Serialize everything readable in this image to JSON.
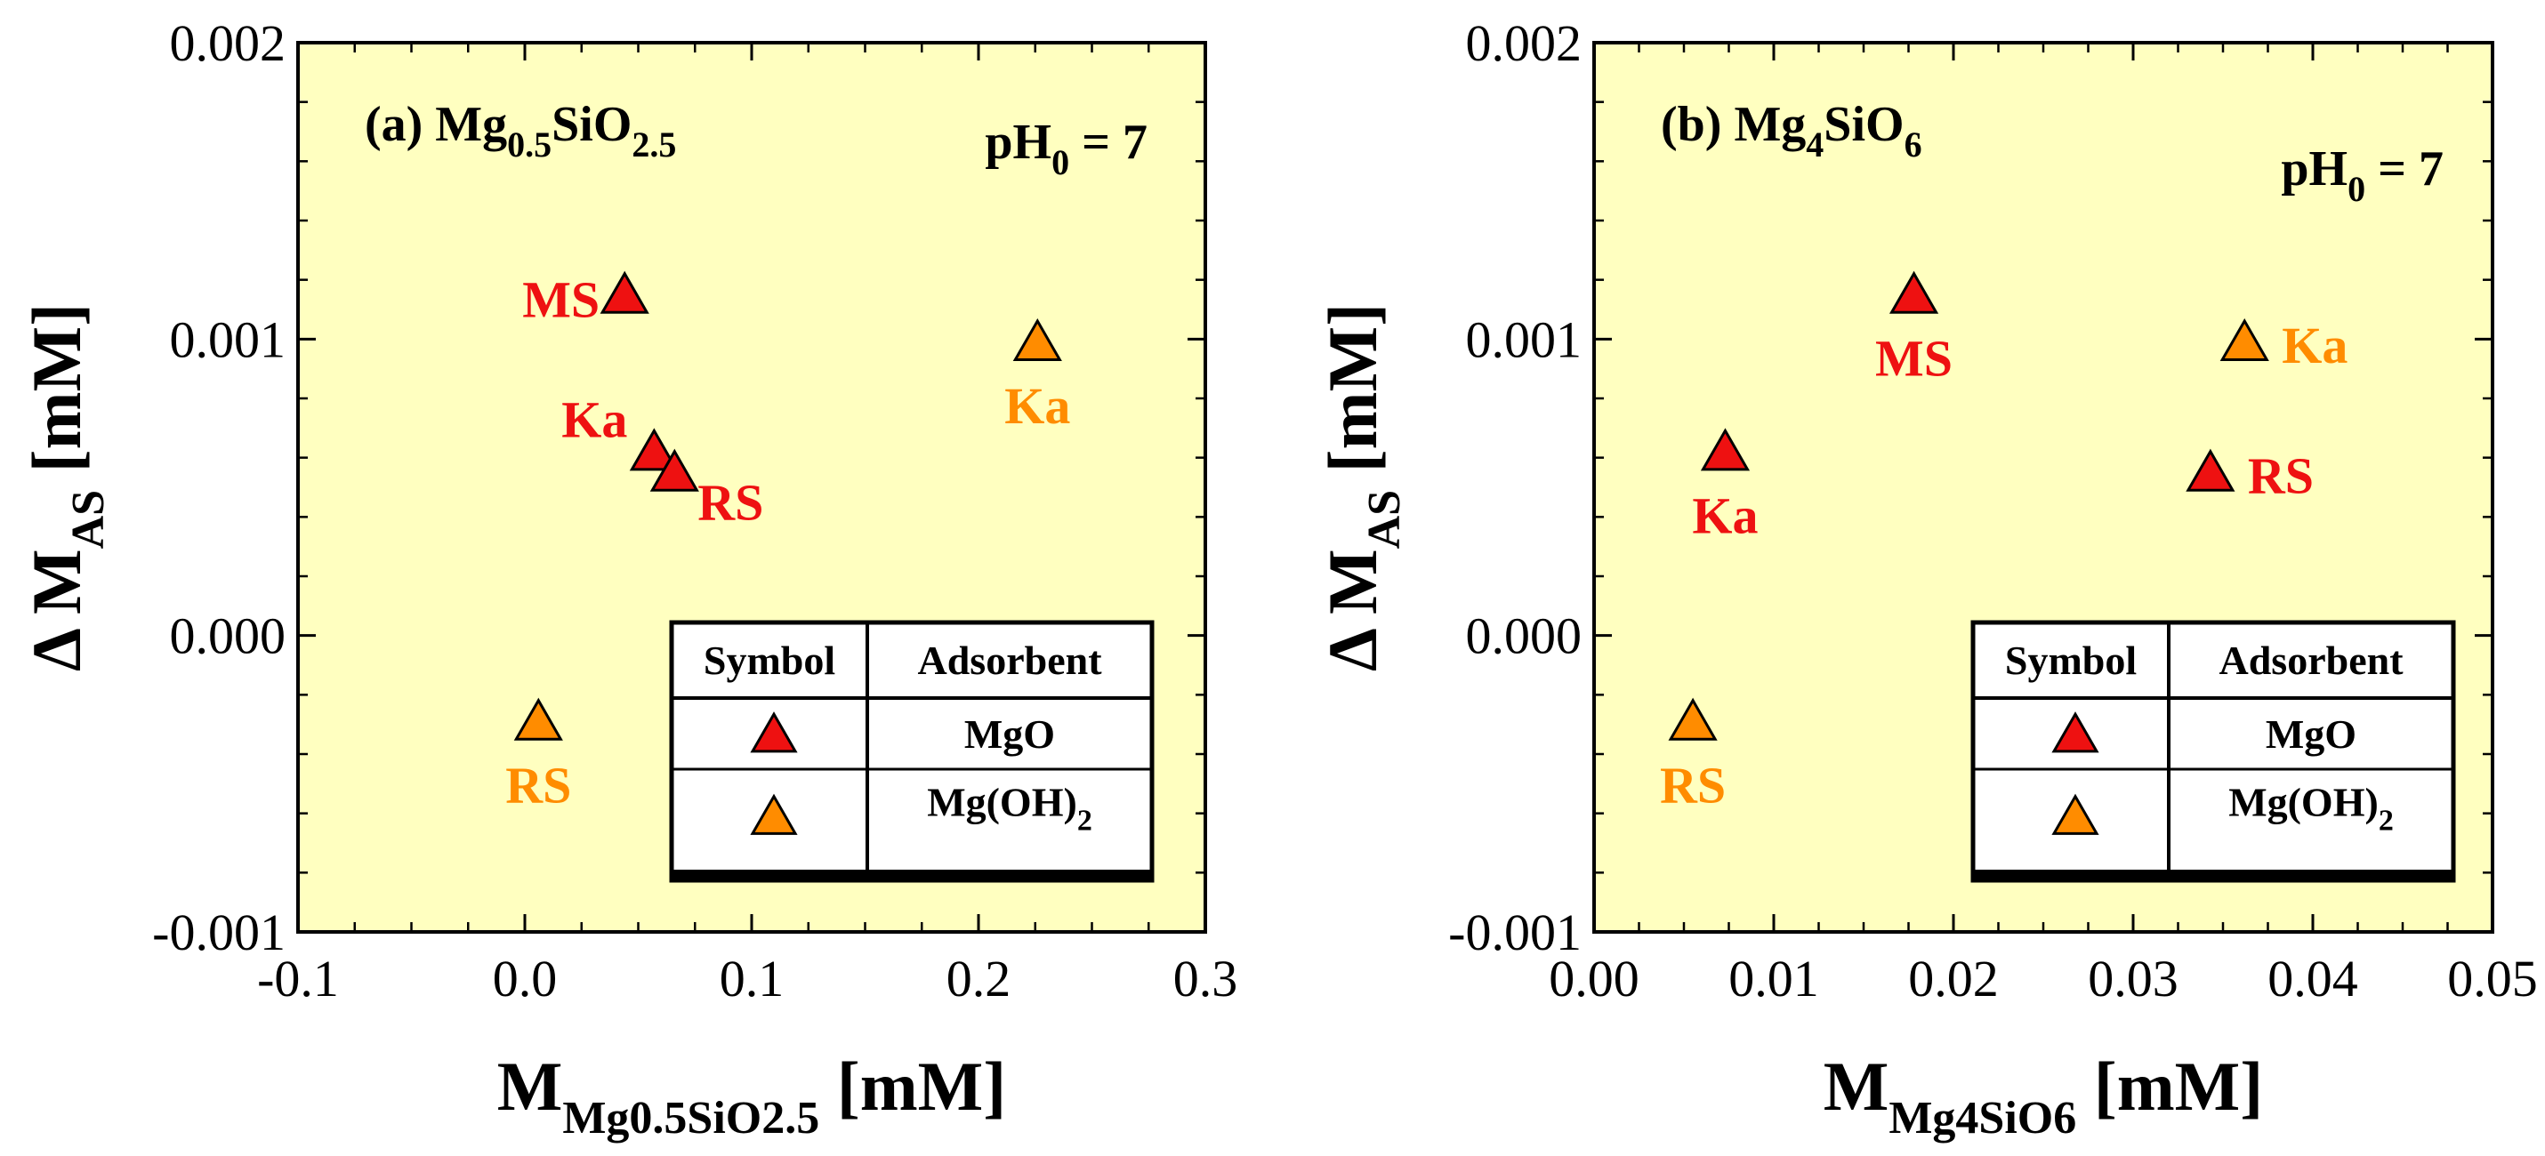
{
  "colors": {
    "plot_bg": "#ffffc0",
    "mgo": "#ee1111",
    "mgoh2": "#ff8c00",
    "mgo_label": "#ee1111",
    "mgoh2_label": "#ff8c00"
  },
  "chart_data": [
    {
      "type": "scatter",
      "panel": "a",
      "panel_label": {
        "prefix": "(a) Mg",
        "sub1": "0.5",
        "mid": "SiO",
        "sub2": "2.5"
      },
      "ph_label": {
        "prefix": "pH",
        "sub": "0",
        "suffix": " = 7"
      },
      "xlabel": {
        "main": "M",
        "sub": "Mg0.5SiO2.5",
        "unit": "[mM]"
      },
      "ylabel": {
        "main": "Δ M",
        "sub": "AS",
        "unit": "[mM]"
      },
      "xlim": [
        -0.1,
        0.3
      ],
      "ylim": [
        -0.001,
        0.002
      ],
      "xticks": [
        -0.1,
        0.0,
        0.1,
        0.2,
        0.3
      ],
      "xtick_labels": [
        "-0.1",
        "0.0",
        "0.1",
        "0.2",
        "0.3"
      ],
      "yticks": [
        -0.001,
        0.0,
        0.001,
        0.002
      ],
      "ytick_labels": [
        "-0.001",
        "0.000",
        "0.001",
        "0.002"
      ],
      "series": [
        {
          "name": "MgO",
          "color_key": "mgo",
          "points": [
            {
              "label": "MS",
              "x": 0.044,
              "y": 0.00114,
              "label_pos": "left"
            },
            {
              "label": "Ka",
              "x": 0.057,
              "y": 0.00061,
              "label_pos": "upper-left"
            },
            {
              "label": "RS",
              "x": 0.066,
              "y": 0.00054,
              "label_pos": "lower-right"
            }
          ]
        },
        {
          "name": "Mg(OH)2",
          "color_key": "mgoh2",
          "points": [
            {
              "label": "Ka",
              "x": 0.226,
              "y": 0.00098,
              "label_pos": "below"
            },
            {
              "label": "RS",
              "x": 0.006,
              "y": -0.0003,
              "label_pos": "below"
            }
          ]
        }
      ],
      "legend": {
        "headers": [
          "Symbol",
          "Adsorbent"
        ],
        "rows": [
          {
            "color_key": "mgo",
            "label": "MgO"
          },
          {
            "color_key": "mgoh2",
            "label_main": "Mg(OH)",
            "label_sub": "2"
          }
        ]
      }
    },
    {
      "type": "scatter",
      "panel": "b",
      "panel_label": {
        "prefix": "(b) Mg",
        "sub1": "4",
        "mid": "SiO",
        "sub2": "6"
      },
      "ph_label": {
        "prefix": "pH",
        "sub": "0",
        "suffix": " = 7"
      },
      "xlabel": {
        "main": "M",
        "sub": "Mg4SiO6",
        "unit": "[mM]"
      },
      "ylabel": {
        "main": "Δ M",
        "sub": "AS",
        "unit": "[mM]"
      },
      "xlim": [
        0.0,
        0.05
      ],
      "ylim": [
        -0.001,
        0.002
      ],
      "xticks": [
        0.0,
        0.01,
        0.02,
        0.03,
        0.04,
        0.05
      ],
      "xtick_labels": [
        "0.00",
        "0.01",
        "0.02",
        "0.03",
        "0.04",
        "0.05"
      ],
      "yticks": [
        -0.001,
        0.0,
        0.001,
        0.002
      ],
      "ytick_labels": [
        "-0.001",
        "0.000",
        "0.001",
        "0.002"
      ],
      "series": [
        {
          "name": "MgO",
          "color_key": "mgo",
          "points": [
            {
              "label": "MS",
              "x": 0.0178,
              "y": 0.00114,
              "label_pos": "below"
            },
            {
              "label": "Ka",
              "x": 0.0073,
              "y": 0.00061,
              "label_pos": "below"
            },
            {
              "label": "RS",
              "x": 0.0343,
              "y": 0.00054,
              "label_pos": "right"
            }
          ]
        },
        {
          "name": "Mg(OH)2",
          "color_key": "mgoh2",
          "points": [
            {
              "label": "Ka",
              "x": 0.0362,
              "y": 0.00098,
              "label_pos": "right"
            },
            {
              "label": "RS",
              "x": 0.0055,
              "y": -0.0003,
              "label_pos": "below"
            }
          ]
        }
      ],
      "legend": {
        "headers": [
          "Symbol",
          "Adsorbent"
        ],
        "rows": [
          {
            "color_key": "mgo",
            "label": "MgO"
          },
          {
            "color_key": "mgoh2",
            "label_main": "Mg(OH)",
            "label_sub": "2"
          }
        ]
      }
    }
  ]
}
